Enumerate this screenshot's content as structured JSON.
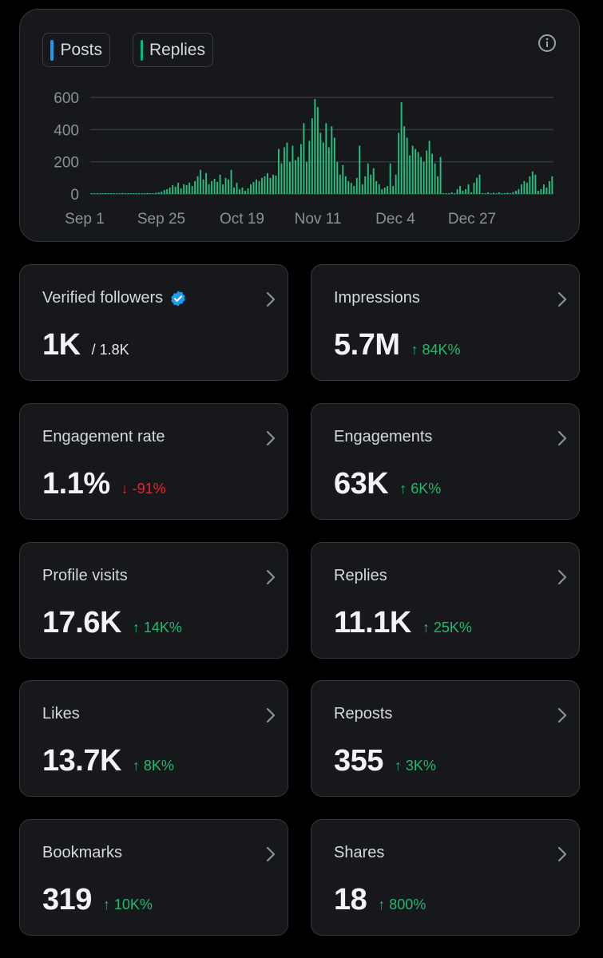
{
  "legend": [
    {
      "label": "Posts",
      "color": "#1d9bf0"
    },
    {
      "label": "Replies",
      "color": "#00ba7c"
    }
  ],
  "info_icon": "info-icon",
  "chart_data": {
    "type": "bar",
    "series": [
      {
        "name": "Replies",
        "color": "#23c07e"
      }
    ],
    "x_tick_labels": [
      "Sep 1",
      "Sep 25",
      "Oct 19",
      "Nov 11",
      "Dec 4",
      "Dec 27"
    ],
    "y_tick_labels": [
      "600",
      "400",
      "200",
      "0"
    ],
    "ylim": [
      0,
      600
    ],
    "grid": true,
    "values": [
      4,
      3,
      5,
      4,
      3,
      6,
      5,
      4,
      3,
      5,
      4,
      6,
      3,
      4,
      5,
      4,
      3,
      2,
      3,
      5,
      6,
      4,
      3,
      8,
      10,
      15,
      25,
      30,
      40,
      55,
      45,
      70,
      35,
      60,
      55,
      70,
      50,
      80,
      110,
      150,
      90,
      130,
      60,
      80,
      95,
      75,
      120,
      60,
      100,
      90,
      150,
      40,
      70,
      30,
      40,
      20,
      35,
      60,
      75,
      90,
      80,
      100,
      110,
      130,
      100,
      120,
      115,
      280,
      190,
      290,
      320,
      200,
      300,
      210,
      230,
      310,
      440,
      200,
      330,
      470,
      590,
      540,
      380,
      320,
      440,
      290,
      420,
      350,
      200,
      120,
      180,
      110,
      80,
      70,
      50,
      100,
      300,
      60,
      110,
      190,
      120,
      160,
      80,
      60,
      30,
      40,
      50,
      190,
      50,
      120,
      380,
      570,
      420,
      350,
      240,
      300,
      280,
      260,
      230,
      200,
      270,
      330,
      250,
      190,
      110,
      230,
      0,
      0,
      0,
      10,
      5,
      30,
      50,
      20,
      30,
      60,
      10,
      70,
      100,
      120,
      0,
      5,
      10,
      0,
      8,
      5,
      10,
      3,
      5,
      8,
      4,
      12,
      20,
      30,
      60,
      80,
      70,
      110,
      140,
      120,
      20,
      30,
      60,
      40,
      80,
      110
    ],
    "value_note": "Daily replies from Sep 1 to Jan 16 (approximate)"
  },
  "stats": [
    {
      "label": "Verified followers",
      "value": "1K",
      "sub": "/ 1.8K",
      "delta": "",
      "direction": "",
      "verified": true
    },
    {
      "label": "Impressions",
      "value": "5.7M",
      "sub": "",
      "delta": "↑ 84K%",
      "direction": "up"
    },
    {
      "label": "Engagement rate",
      "value": "1.1%",
      "sub": "",
      "delta": "↓ -91%",
      "direction": "down"
    },
    {
      "label": "Engagements",
      "value": "63K",
      "sub": "",
      "delta": "↑ 6K%",
      "direction": "up"
    },
    {
      "label": "Profile visits",
      "value": "17.6K",
      "sub": "",
      "delta": "↑ 14K%",
      "direction": "up"
    },
    {
      "label": "Replies",
      "value": "11.1K",
      "sub": "",
      "delta": "↑ 25K%",
      "direction": "up"
    },
    {
      "label": "Likes",
      "value": "13.7K",
      "sub": "",
      "delta": "↑ 8K%",
      "direction": "up"
    },
    {
      "label": "Reposts",
      "value": "355",
      "sub": "",
      "delta": "↑ 3K%",
      "direction": "up"
    },
    {
      "label": "Bookmarks",
      "value": "319",
      "sub": "",
      "delta": "↑ 10K%",
      "direction": "up"
    },
    {
      "label": "Shares",
      "value": "18",
      "sub": "",
      "delta": "↑ 800%",
      "direction": "up"
    }
  ]
}
